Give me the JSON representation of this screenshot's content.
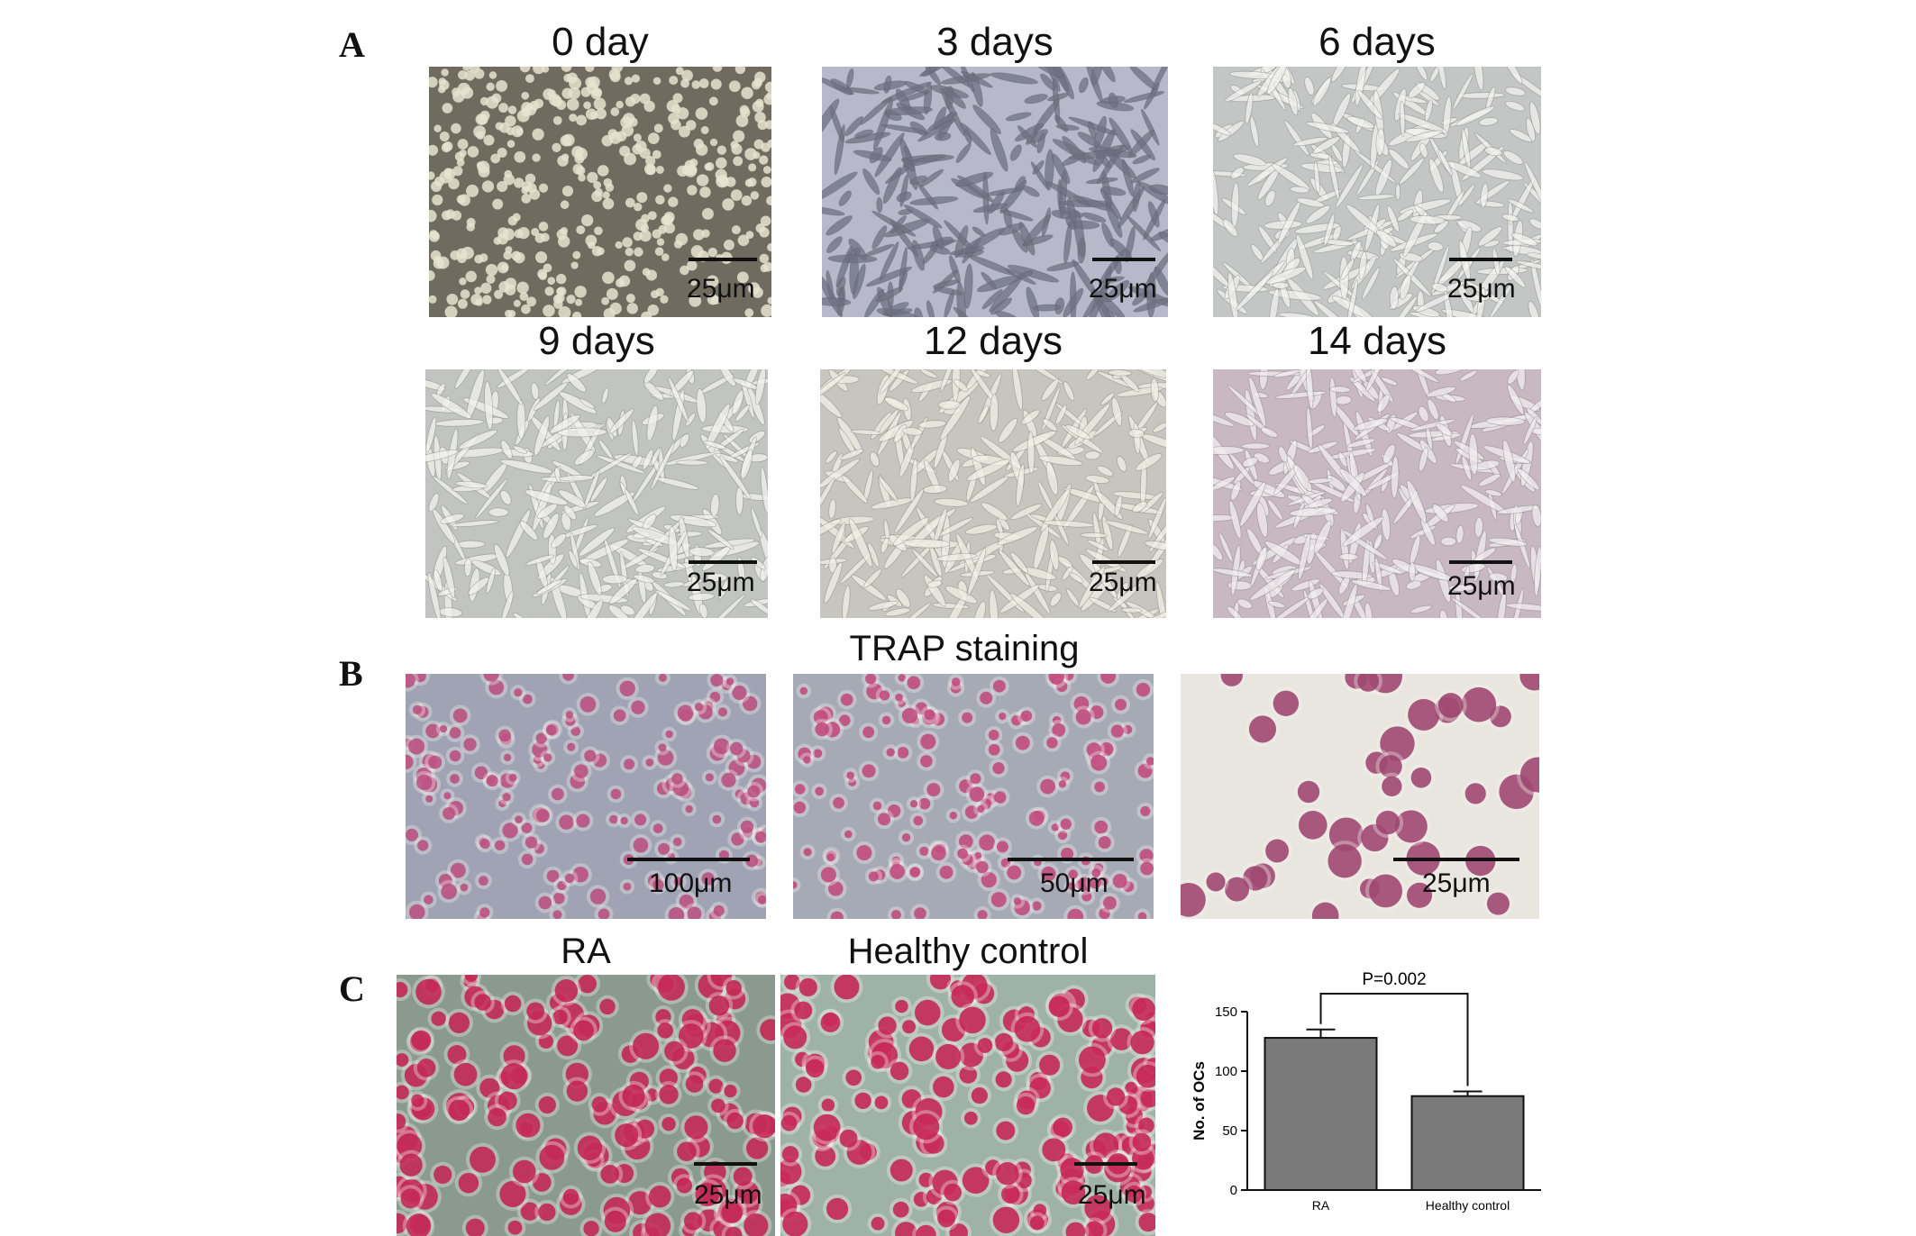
{
  "panels": {
    "A": {
      "letter": "A",
      "images": [
        {
          "caption": "0  day",
          "scale": "25μm",
          "bg": "#6f6b5e",
          "cell": "#e8e3d0",
          "style": "round"
        },
        {
          "caption": "3  days",
          "scale": "25μm",
          "bg": "#b7b8ca",
          "cell": "#6e7083",
          "style": "spindle"
        },
        {
          "caption": "6  days",
          "scale": "25μm",
          "bg": "#c4c6c6",
          "cell": "#f2f2ee",
          "style": "spindle"
        },
        {
          "caption": "9  days",
          "scale": "25μm",
          "bg": "#c2c4c2",
          "cell": "#f2f2ec",
          "style": "spindle"
        },
        {
          "caption": "12  days",
          "scale": "25μm",
          "bg": "#c6c5c0",
          "cell": "#f0efe6",
          "style": "spindle"
        },
        {
          "caption": "14  days",
          "scale": "25μm",
          "bg": "#c8b8c2",
          "cell": "#f2ecef",
          "style": "spindle"
        }
      ]
    },
    "B": {
      "letter": "B",
      "title": "TRAP staining",
      "images": [
        {
          "scale": "100μm",
          "bg": "#9fa3b3",
          "cell": "#b84b7c",
          "style": "dots"
        },
        {
          "scale": "50μm",
          "bg": "#a6aab5",
          "cell": "#c0457a",
          "style": "dots"
        },
        {
          "scale": "25μm",
          "bg": "#e9e6df",
          "cell": "#9b3e6a",
          "style": "dots"
        }
      ]
    },
    "C": {
      "letter": "C",
      "images": [
        {
          "caption": "RA",
          "scale": "25μm",
          "bg": "#8a9a8e",
          "cell": "#c21e4f",
          "style": "dots"
        },
        {
          "caption": "Healthy control",
          "scale": "25μm",
          "bg": "#9eb2a8",
          "cell": "#c41e50",
          "style": "dots"
        }
      ]
    }
  },
  "chart_data": {
    "type": "bar",
    "categories": [
      "RA",
      "Healthy control"
    ],
    "values": [
      128,
      79
    ],
    "errors": [
      7,
      4
    ],
    "ylabel": "No. of OCs",
    "ylim": [
      0,
      150
    ],
    "yticks": [
      0,
      50,
      100,
      150
    ],
    "annotation": "P=0.002",
    "bar_color": "#7a7a7a"
  }
}
